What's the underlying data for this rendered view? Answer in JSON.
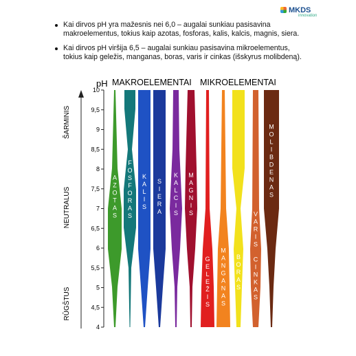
{
  "logo": {
    "name": "MKDS",
    "tagline": "innovation"
  },
  "bullets": [
    "Kai dirvos pH yra mažesnis nei 6,0 – augalai sunkiau pasisavina makroelementus, tokius kaip azotas, fosforas, kalis, kalcis, magnis, siera.",
    "Kai dirvos pH viršija 6,5 – augalai sunkiau pasisavina mikroelementus, tokius kaip geležis, manganas, boras, varis ir cinkas (išskyrus molibdeną)."
  ],
  "chart_data": {
    "type": "ph-bands",
    "y_label": "pH",
    "group_labels": [
      "MAKROELEMENTAI",
      "MIKROELEMENTAI"
    ],
    "side_labels": [
      "ŠARMINIS",
      "NEUTRALUS",
      "RŪGŠTUS"
    ],
    "ylim": [
      4,
      10
    ],
    "yticks": [
      4,
      {
        "value": 4.5,
        "label": "4,5"
      },
      5,
      {
        "value": 5.5,
        "label": "5,5"
      },
      6,
      {
        "value": 6.5,
        "label": "6,5"
      },
      7,
      {
        "value": 7.5,
        "label": "7,5"
      },
      8,
      {
        "value": 8.5,
        "label": "8,5"
      },
      9,
      {
        "value": 9.5,
        "label": "9,5"
      },
      10
    ],
    "series": [
      {
        "name": "AZOTAS",
        "color": "#3d9a2b"
      },
      {
        "name": "FOSFORAS",
        "color": "#14787a"
      },
      {
        "name": "KALIS",
        "color": "#1f52c4"
      },
      {
        "name": "SIERA",
        "color": "#1b3a9c"
      },
      {
        "name": "KALCIS",
        "color": "#7a2a9e"
      },
      {
        "name": "MAGNIS",
        "color": "#a0102e"
      },
      {
        "name": "GELEŽIS",
        "color": "#e11f1f"
      },
      {
        "name": "MANGANAS",
        "color": "#f2831f"
      },
      {
        "name": "BORAS",
        "color": "#f2e11c"
      },
      {
        "name": "VARIS CINKAS",
        "color": "#d2612e"
      },
      {
        "name": "MOLIBDENAS",
        "color": "#6b2a12"
      }
    ]
  }
}
